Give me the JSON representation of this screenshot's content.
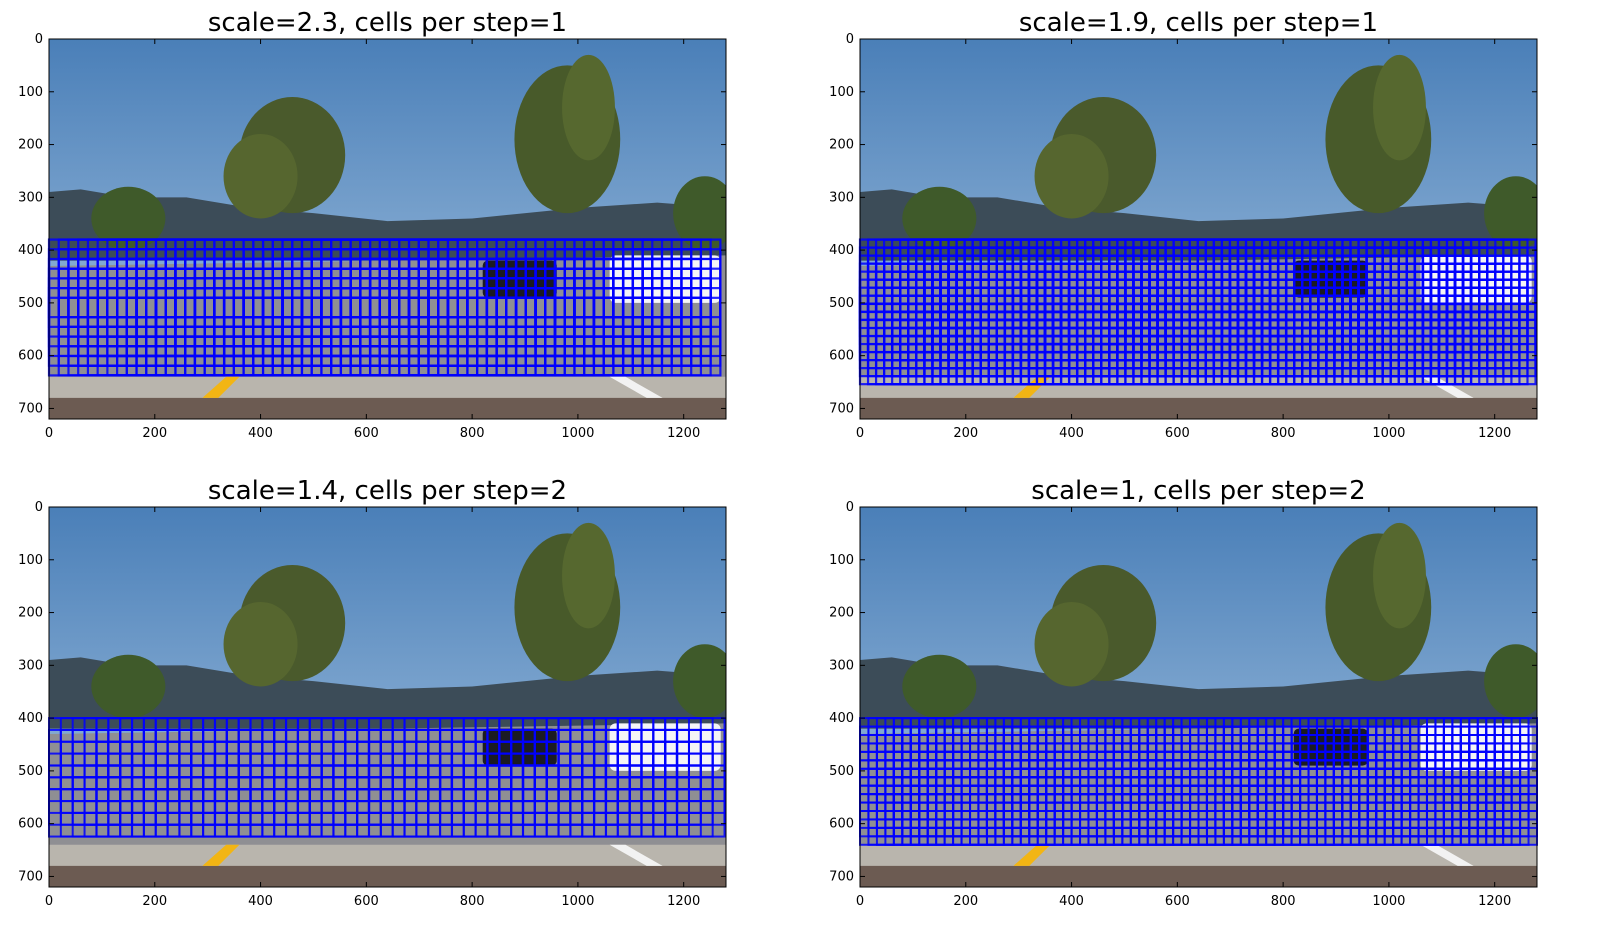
{
  "figure": {
    "background": "#ffffff"
  },
  "colors": {
    "window_outline": "#0000ff",
    "sky_top": "#4a7fb8",
    "sky_bottom": "#a9c6e2",
    "hills": "#3c4c58",
    "tree": "#4a5a2c",
    "road": "#8f8f93",
    "shoulder": "#b9b5ad",
    "dirt": "#6c5b52",
    "lane_yellow": "#f2b514",
    "lane_white": "#f2f2f2"
  },
  "chart_data": [
    {
      "type": "image",
      "title": "scale=2.3, cells per step=1",
      "xlim": [
        0,
        1280
      ],
      "ylim": [
        720,
        0
      ],
      "xticks": [
        0,
        200,
        400,
        600,
        800,
        1000,
        1200
      ],
      "yticks": [
        0,
        100,
        200,
        300,
        400,
        500,
        600,
        700
      ],
      "xtick_labels": [
        "0",
        "200",
        "400",
        "600",
        "800",
        "1000",
        "1200"
      ],
      "ytick_labels": [
        "0",
        "100",
        "200",
        "300",
        "400",
        "500",
        "600",
        "700"
      ],
      "search_region": {
        "x": [
          0,
          1280
        ],
        "y": [
          380,
          640
        ]
      },
      "scale": 2.3,
      "cells_per_step": 1,
      "window_size": 147,
      "step": 18.4
    },
    {
      "type": "image",
      "title": "scale=1.9, cells per step=1",
      "xlim": [
        0,
        1280
      ],
      "ylim": [
        720,
        0
      ],
      "xticks": [
        0,
        200,
        400,
        600,
        800,
        1000,
        1200
      ],
      "yticks": [
        0,
        100,
        200,
        300,
        400,
        500,
        600,
        700
      ],
      "xtick_labels": [
        "0",
        "200",
        "400",
        "600",
        "800",
        "1000",
        "1200"
      ],
      "ytick_labels": [
        "0",
        "100",
        "200",
        "300",
        "400",
        "500",
        "600",
        "700"
      ],
      "search_region": {
        "x": [
          0,
          1280
        ],
        "y": [
          380,
          655
        ]
      },
      "scale": 1.9,
      "cells_per_step": 1,
      "window_size": 122,
      "step": 15.2
    },
    {
      "type": "image",
      "title": "scale=1.4, cells per step=2",
      "xlim": [
        0,
        1280
      ],
      "ylim": [
        720,
        0
      ],
      "xticks": [
        0,
        200,
        400,
        600,
        800,
        1000,
        1200
      ],
      "yticks": [
        0,
        100,
        200,
        300,
        400,
        500,
        600,
        700
      ],
      "xtick_labels": [
        "0",
        "200",
        "400",
        "600",
        "800",
        "1000",
        "1200"
      ],
      "ytick_labels": [
        "0",
        "100",
        "200",
        "300",
        "400",
        "500",
        "600",
        "700"
      ],
      "search_region": {
        "x": [
          0,
          1280
        ],
        "y": [
          400,
          645
        ]
      },
      "scale": 1.4,
      "cells_per_step": 2,
      "window_size": 90,
      "step": 22.4
    },
    {
      "type": "image",
      "title": "scale=1, cells per step=2",
      "xlim": [
        0,
        1280
      ],
      "ylim": [
        720,
        0
      ],
      "xticks": [
        0,
        200,
        400,
        600,
        800,
        1000,
        1200
      ],
      "yticks": [
        0,
        100,
        200,
        300,
        400,
        500,
        600,
        700
      ],
      "xtick_labels": [
        "0",
        "200",
        "400",
        "600",
        "800",
        "1000",
        "1200"
      ],
      "ytick_labels": [
        "0",
        "100",
        "200",
        "300",
        "400",
        "500",
        "600",
        "700"
      ],
      "search_region": {
        "x": [
          0,
          1280
        ],
        "y": [
          400,
          645
        ]
      },
      "scale": 1,
      "cells_per_step": 2,
      "window_size": 64,
      "step": 16
    }
  ]
}
